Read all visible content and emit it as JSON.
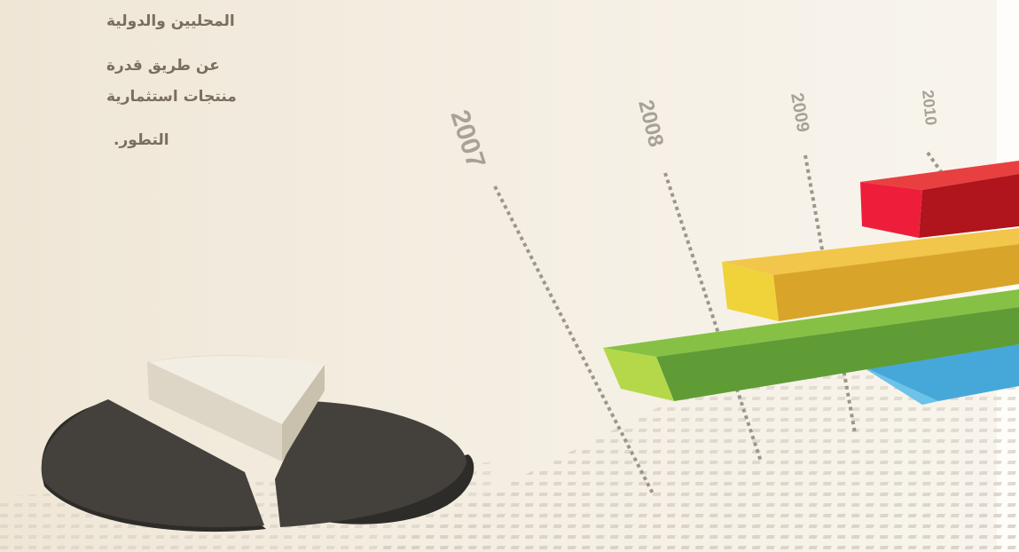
{
  "text_lines": [
    "المحليين والدولية",
    "عن طريق قدرة",
    "منتجات استثمارية",
    "التطور."
  ],
  "timeline": {
    "years": [
      "2007",
      "2008",
      "2009",
      "2010"
    ]
  },
  "colors": {
    "background": "#f3ecdf",
    "text": "#7a6e5e",
    "red_bar": "#d81e2c",
    "yellow_bar": "#e8b52d",
    "green_bar": "#6aa63a",
    "blue_bar": "#4bb0dd",
    "pie_dark": "#3f3d39",
    "pie_light": "#e9e4d6"
  },
  "icons": [
    "pie-chart-graphic",
    "bar-chart-graphic"
  ]
}
